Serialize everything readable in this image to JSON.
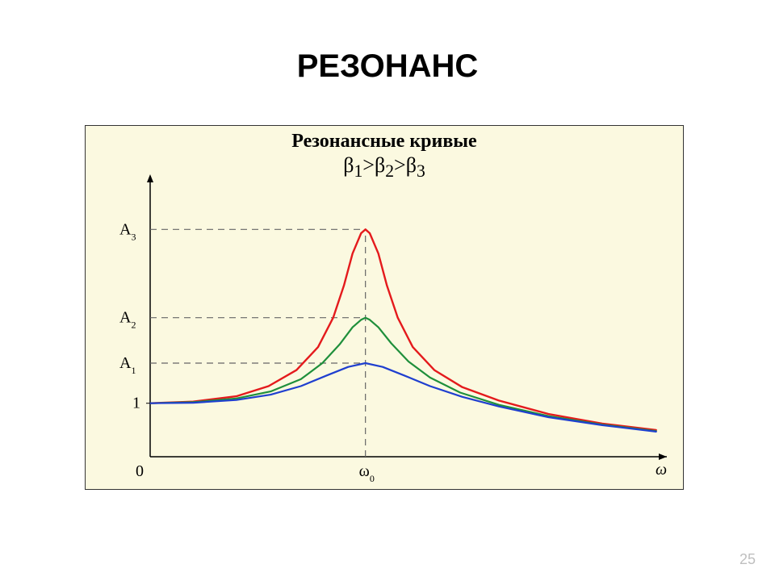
{
  "page_number": "25",
  "heading": "РЕЗОНАНС",
  "chart": {
    "type": "line",
    "inner_title": "Резонансные кривые",
    "relation_html": "β<sub>1</sub>&gt;β<sub>2</sub>&gt;β<sub>3</sub>",
    "background_color": "#fbf9e0",
    "border_color": "#000000",
    "y_axis": {
      "origin_label": "0",
      "baseline_label": "1",
      "amp_labels": [
        "A",
        "A",
        "A"
      ],
      "amp_subs": [
        "1",
        "2",
        "3"
      ],
      "amp_y_values": [
        1.75,
        2.6,
        4.25
      ]
    },
    "x_axis": {
      "symbol": "ω",
      "resonance_label": "ω",
      "resonance_sub": "0",
      "resonance_x": 1.0,
      "xmax": 2.4
    },
    "ylim": [
      0,
      5.1
    ],
    "series": [
      {
        "name": "beta3",
        "color": "#e41a1c",
        "width": 2.4,
        "points": [
          [
            0,
            1.0
          ],
          [
            0.2,
            1.03
          ],
          [
            0.4,
            1.13
          ],
          [
            0.55,
            1.32
          ],
          [
            0.68,
            1.62
          ],
          [
            0.78,
            2.05
          ],
          [
            0.85,
            2.6
          ],
          [
            0.9,
            3.2
          ],
          [
            0.94,
            3.8
          ],
          [
            0.98,
            4.18
          ],
          [
            1.0,
            4.25
          ],
          [
            1.02,
            4.18
          ],
          [
            1.06,
            3.8
          ],
          [
            1.1,
            3.2
          ],
          [
            1.15,
            2.6
          ],
          [
            1.22,
            2.05
          ],
          [
            1.32,
            1.62
          ],
          [
            1.45,
            1.3
          ],
          [
            1.62,
            1.05
          ],
          [
            1.85,
            0.8
          ],
          [
            2.1,
            0.62
          ],
          [
            2.35,
            0.5
          ]
        ]
      },
      {
        "name": "beta2",
        "color": "#1f8f3b",
        "width": 2.2,
        "points": [
          [
            0,
            1.0
          ],
          [
            0.2,
            1.02
          ],
          [
            0.4,
            1.09
          ],
          [
            0.56,
            1.22
          ],
          [
            0.7,
            1.45
          ],
          [
            0.8,
            1.75
          ],
          [
            0.88,
            2.1
          ],
          [
            0.94,
            2.42
          ],
          [
            0.98,
            2.56
          ],
          [
            1.0,
            2.6
          ],
          [
            1.02,
            2.56
          ],
          [
            1.06,
            2.42
          ],
          [
            1.12,
            2.12
          ],
          [
            1.2,
            1.78
          ],
          [
            1.3,
            1.48
          ],
          [
            1.44,
            1.2
          ],
          [
            1.62,
            0.97
          ],
          [
            1.85,
            0.76
          ],
          [
            2.1,
            0.6
          ],
          [
            2.35,
            0.48
          ]
        ]
      },
      {
        "name": "beta1",
        "color": "#1f3fcf",
        "width": 2.2,
        "points": [
          [
            0,
            1.0
          ],
          [
            0.2,
            1.01
          ],
          [
            0.4,
            1.06
          ],
          [
            0.56,
            1.16
          ],
          [
            0.7,
            1.32
          ],
          [
            0.82,
            1.52
          ],
          [
            0.92,
            1.68
          ],
          [
            1.0,
            1.75
          ],
          [
            1.08,
            1.68
          ],
          [
            1.18,
            1.52
          ],
          [
            1.3,
            1.32
          ],
          [
            1.45,
            1.12
          ],
          [
            1.62,
            0.94
          ],
          [
            1.85,
            0.74
          ],
          [
            2.1,
            0.59
          ],
          [
            2.35,
            0.47
          ]
        ]
      }
    ],
    "dash_color": "#666666",
    "axis_color": "#000000",
    "label_fontsize": 20
  }
}
